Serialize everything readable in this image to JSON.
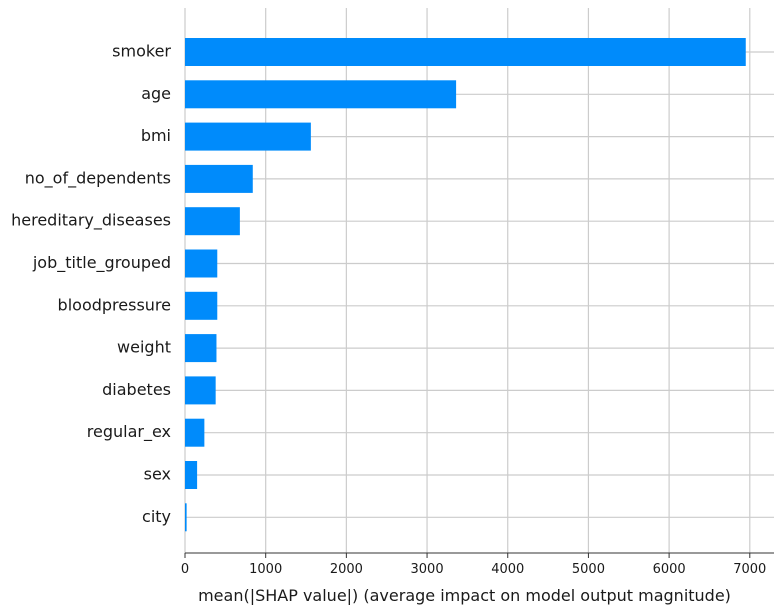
{
  "chart_data": {
    "type": "bar",
    "orientation": "horizontal",
    "categories": [
      "smoker",
      "age",
      "bmi",
      "no_of_dependents",
      "hereditary_diseases",
      "job_title_grouped",
      "bloodpressure",
      "weight",
      "diabetes",
      "regular_ex",
      "sex",
      "city"
    ],
    "values": [
      6950,
      3360,
      1560,
      840,
      680,
      400,
      400,
      390,
      380,
      240,
      150,
      20
    ],
    "xlabel": "mean(|SHAP value|) (average impact on model output magnitude)",
    "ylabel": "",
    "xlim": [
      0,
      7300
    ],
    "xticks": [
      0,
      1000,
      2000,
      3000,
      4000,
      5000,
      6000,
      7000
    ],
    "xtick_labels": [
      "0",
      "1000",
      "2000",
      "3000",
      "4000",
      "5000",
      "6000",
      "7000"
    ],
    "grid": true,
    "bar_color": "#008bfb"
  }
}
